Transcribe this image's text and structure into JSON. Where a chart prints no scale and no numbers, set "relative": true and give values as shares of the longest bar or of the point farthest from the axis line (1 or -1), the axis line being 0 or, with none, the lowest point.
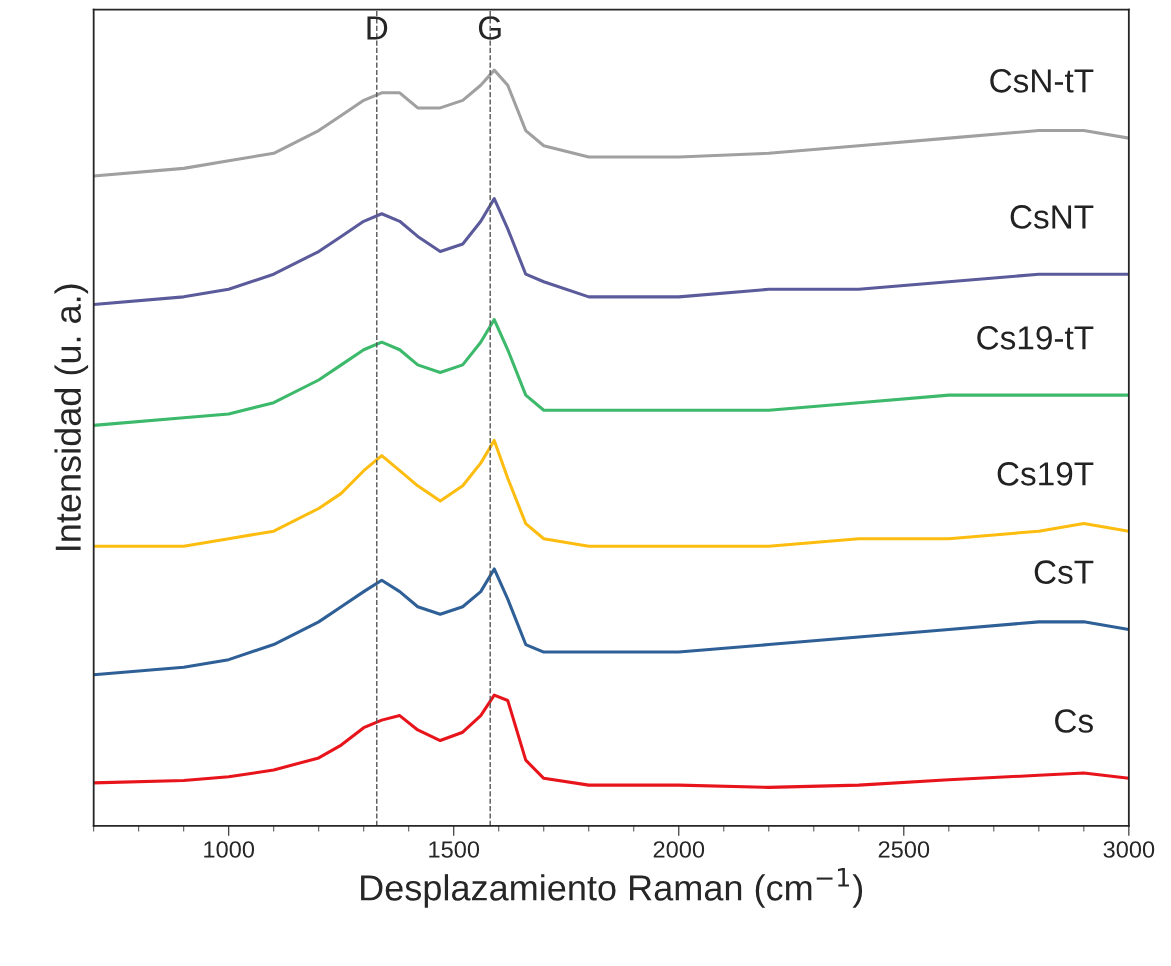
{
  "chart_data": {
    "type": "line",
    "relative": true,
    "xlabel": "Desplazamiento Raman (cm$^{−1}$)",
    "ylabel": "Intensidad (u. a.)",
    "x": [
      700,
      900,
      1000,
      1100,
      1200,
      1250,
      1300,
      1340,
      1380,
      1420,
      1470,
      1520,
      1560,
      1590,
      1620,
      1660,
      1700,
      1800,
      2000,
      2200,
      2400,
      2600,
      2800,
      2900,
      3000
    ],
    "xlim": [
      700,
      3000
    ],
    "xticks": [
      1000,
      1500,
      2000,
      2500,
      3000
    ],
    "grid": false,
    "legend": false,
    "marker": "none",
    "line_style": "solid",
    "series": [
      {
        "name": "CsN-tT",
        "color": "#a0a0a0",
        "values": [
          0.86,
          0.87,
          0.88,
          0.89,
          0.92,
          0.94,
          0.96,
          0.97,
          0.97,
          0.95,
          0.95,
          0.96,
          0.98,
          1.0,
          0.98,
          0.92,
          0.9,
          0.885,
          0.885,
          0.89,
          0.9,
          0.91,
          0.92,
          0.92,
          0.91
        ]
      },
      {
        "name": "CsNT",
        "color": "#5b5b9c",
        "values": [
          0.69,
          0.7,
          0.71,
          0.73,
          0.76,
          0.78,
          0.8,
          0.81,
          0.8,
          0.78,
          0.76,
          0.77,
          0.8,
          0.83,
          0.79,
          0.73,
          0.72,
          0.7,
          0.7,
          0.71,
          0.71,
          0.72,
          0.73,
          0.73,
          0.73
        ]
      },
      {
        "name": "Cs19-tT",
        "color": "#3cb96b",
        "values": [
          0.53,
          0.54,
          0.545,
          0.56,
          0.59,
          0.61,
          0.63,
          0.64,
          0.63,
          0.61,
          0.6,
          0.61,
          0.64,
          0.67,
          0.63,
          0.57,
          0.55,
          0.55,
          0.55,
          0.55,
          0.56,
          0.57,
          0.57,
          0.57,
          0.57
        ]
      },
      {
        "name": "Cs19T",
        "color": "#fdbd10",
        "values": [
          0.37,
          0.37,
          0.38,
          0.39,
          0.42,
          0.44,
          0.47,
          0.49,
          0.47,
          0.45,
          0.43,
          0.45,
          0.48,
          0.51,
          0.46,
          0.4,
          0.38,
          0.37,
          0.37,
          0.37,
          0.38,
          0.38,
          0.39,
          0.4,
          0.39
        ]
      },
      {
        "name": "CsT",
        "color": "#2e5f96",
        "values": [
          0.2,
          0.21,
          0.22,
          0.24,
          0.27,
          0.29,
          0.31,
          0.325,
          0.31,
          0.29,
          0.28,
          0.29,
          0.31,
          0.34,
          0.3,
          0.24,
          0.23,
          0.23,
          0.23,
          0.24,
          0.25,
          0.26,
          0.27,
          0.27,
          0.26
        ]
      },
      {
        "name": "Cs",
        "color": "#e8141b",
        "values": [
          0.057,
          0.06,
          0.065,
          0.074,
          0.09,
          0.107,
          0.13,
          0.14,
          0.146,
          0.127,
          0.113,
          0.124,
          0.146,
          0.173,
          0.166,
          0.087,
          0.063,
          0.054,
          0.054,
          0.051,
          0.054,
          0.061,
          0.067,
          0.07,
          0.063
        ]
      }
    ],
    "ref_lines": [
      {
        "axis": "x",
        "value": 1329,
        "label": "D",
        "color": "#555555",
        "line_style": "dashed"
      },
      {
        "axis": "x",
        "value": 1581,
        "label": "G",
        "color": "#555555",
        "line_style": "dashed"
      }
    ]
  }
}
